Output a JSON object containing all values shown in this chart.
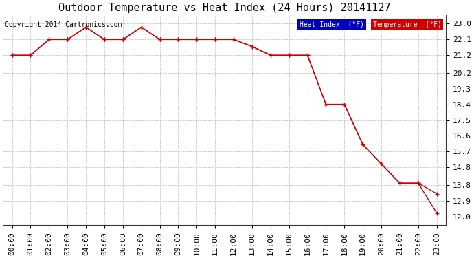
{
  "title": "Outdoor Temperature vs Heat Index (24 Hours) 20141127",
  "copyright": "Copyright 2014 Cartronics.com",
  "background_color": "#ffffff",
  "plot_bg_color": "#ffffff",
  "grid_color": "#bbbbbb",
  "x_labels": [
    "00:00",
    "01:00",
    "02:00",
    "03:00",
    "04:00",
    "05:00",
    "06:00",
    "07:00",
    "08:00",
    "09:00",
    "10:00",
    "11:00",
    "12:00",
    "13:00",
    "14:00",
    "15:00",
    "16:00",
    "17:00",
    "18:00",
    "19:00",
    "20:00",
    "21:00",
    "22:00",
    "23:00"
  ],
  "temperature": [
    21.2,
    21.2,
    22.1,
    22.1,
    22.8,
    22.1,
    22.1,
    22.8,
    22.1,
    22.1,
    22.1,
    22.1,
    22.1,
    21.7,
    21.2,
    21.2,
    21.2,
    18.4,
    18.4,
    16.1,
    15.0,
    13.9,
    13.9,
    13.3
  ],
  "heat_index": [
    21.2,
    21.2,
    22.1,
    22.1,
    22.8,
    22.1,
    22.1,
    22.8,
    22.1,
    22.1,
    22.1,
    22.1,
    22.1,
    21.7,
    21.2,
    21.2,
    21.2,
    18.4,
    18.4,
    16.1,
    15.0,
    13.9,
    13.9,
    12.2
  ],
  "line_color": "#cc0000",
  "ylim_min": 11.5,
  "ylim_max": 23.5,
  "yticks": [
    12.0,
    12.9,
    13.8,
    14.8,
    15.7,
    16.6,
    17.5,
    18.4,
    19.3,
    20.2,
    21.2,
    22.1,
    23.0
  ],
  "legend_heat_bg": "#0000bb",
  "legend_temp_bg": "#cc0000",
  "legend_text_color": "#ffffff",
  "legend_heat_label": "Heat Index  (°F)",
  "legend_temp_label": "Temperature  (°F)",
  "title_fontsize": 11,
  "copyright_fontsize": 7,
  "tick_fontsize": 8,
  "tick_font": "monospace"
}
